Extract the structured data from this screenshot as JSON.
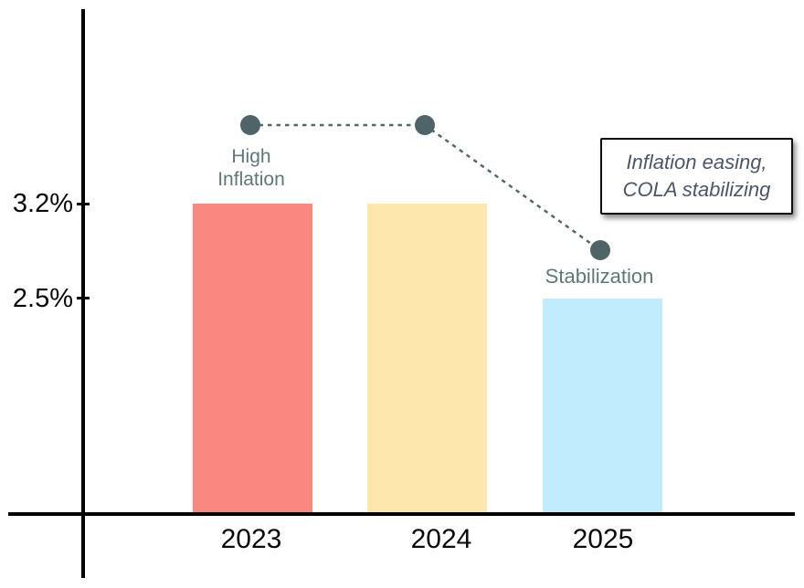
{
  "chart_data": {
    "type": "bar",
    "title": "",
    "categories": [
      "2023",
      "2024",
      "2025"
    ],
    "values": [
      3.2,
      3.2,
      2.5
    ],
    "value_unit": "%",
    "bar_colors": [
      "#FB8781",
      "#FDE7AC",
      "#C0ECFD"
    ],
    "ytick_labels": [
      "3.2%",
      "2.5%"
    ],
    "ytick_values": [
      3.2,
      2.5
    ],
    "axis_color": "#000000",
    "grid": false,
    "trend_overlay": {
      "style": "dotted line with round markers",
      "values": [
        3.78,
        3.78,
        2.86
      ],
      "line_color": "#51686D",
      "marker_color": "#4E6467"
    },
    "point_labels": [
      {
        "text": "High\nInflation",
        "anchor_category": "2023"
      },
      {
        "text": "Stabilization",
        "anchor_category": "2025"
      }
    ],
    "point_label_color": "#5E7875",
    "annotation_box": {
      "line1": "Inflation easing,",
      "line2": "COLA stabilizing",
      "text_color": "#4B5768"
    }
  }
}
